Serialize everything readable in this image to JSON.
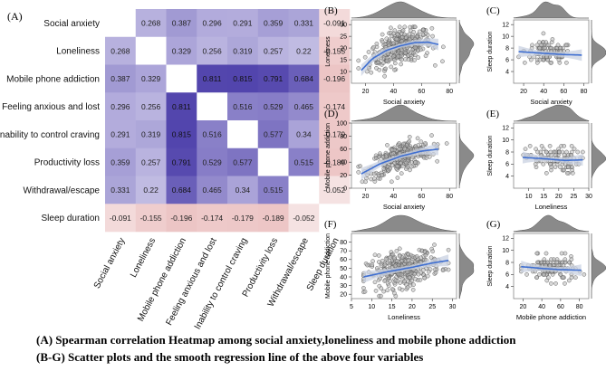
{
  "chart_data": [
    {
      "type": "heatmap",
      "panel_label": "(A)",
      "variables": [
        "Social anxiety",
        "Loneliness",
        "Mobile phone addiction",
        "Feeling anxious and lost",
        "Inability to control craving",
        "Productivity loss",
        "Withdrawal/escape",
        "Sleep duration"
      ],
      "values": [
        [
          null,
          0.268,
          0.387,
          0.296,
          0.291,
          0.359,
          0.331,
          -0.091
        ],
        [
          0.268,
          null,
          0.329,
          0.256,
          0.319,
          0.257,
          0.22,
          -0.155
        ],
        [
          0.387,
          0.329,
          null,
          0.811,
          0.815,
          0.791,
          0.684,
          -0.196
        ],
        [
          0.296,
          0.256,
          0.811,
          null,
          0.516,
          0.529,
          0.465,
          -0.174
        ],
        [
          0.291,
          0.319,
          0.815,
          0.516,
          null,
          0.577,
          0.34,
          -0.179
        ],
        [
          0.359,
          0.257,
          0.791,
          0.529,
          0.577,
          null,
          0.515,
          -0.189
        ],
        [
          0.331,
          0.22,
          0.684,
          0.465,
          0.34,
          0.515,
          null,
          -0.052
        ],
        [
          -0.091,
          -0.155,
          -0.196,
          -0.174,
          -0.179,
          -0.189,
          -0.052,
          null
        ]
      ],
      "row_labels": [
        "Social anxiety",
        "Loneliness",
        "Mobile phone addiction",
        "Feeling anxious and lost",
        "Inability to control craving",
        "Productivity loss",
        "Withdrawal/escape",
        "Sleep duration"
      ],
      "value_labels": [
        [
          "",
          "0.268",
          "0.387",
          "0.296",
          "0.291",
          "0.359",
          "0.331",
          "-0.091"
        ],
        [
          "0.268",
          "",
          "0.329",
          "0.256",
          "0.319",
          "0.257",
          "0.22",
          "-0.155"
        ],
        [
          "0.387",
          "0.329",
          "",
          "0.811",
          "0.815",
          "0.791",
          "0.684",
          "-0.196"
        ],
        [
          "0.296",
          "0.256",
          "0.811",
          "",
          "0.516",
          "0.529",
          "0.465",
          "-0.174"
        ],
        [
          "0.291",
          "0.319",
          "0.815",
          "0.516",
          "",
          "0.577",
          "0.34",
          "-0.179"
        ],
        [
          "0.359",
          "0.257",
          "0.791",
          "0.529",
          "0.577",
          "",
          "0.515",
          "-0.189"
        ],
        [
          "0.331",
          "0.22",
          "0.684",
          "0.465",
          "0.34",
          "0.515",
          "",
          "-0.052"
        ],
        [
          "-0.091",
          "-0.155",
          "-0.196",
          "-0.174",
          "-0.179",
          "-0.189",
          "-0.052",
          ""
        ]
      ],
      "colors": {
        "positive": "#5a4aa8",
        "negative": "#d8a0a0",
        "neutral": "#ffffff"
      }
    },
    {
      "type": "scatter",
      "panel_label": "(B)",
      "xlabel": "Social anxiety",
      "ylabel": "Loneliness",
      "xlim": [
        10,
        85
      ],
      "ylim": [
        5,
        32
      ],
      "xticks": [
        20,
        40,
        60,
        80
      ],
      "yticks": [
        10,
        15,
        20,
        25,
        30
      ],
      "fit": {
        "type": "smooth",
        "x": [
          17,
          25,
          35,
          45,
          55,
          65,
          72
        ],
        "y": [
          10.5,
          15.5,
          19,
          21,
          22.3,
          22.5,
          21.5
        ]
      },
      "sample": {
        "n": 320,
        "x_mean": 45,
        "x_sd": 11,
        "x_min": 15,
        "x_max": 78,
        "y_noise": 3.6,
        "y_min": 8,
        "y_max": 29
      }
    },
    {
      "type": "scatter",
      "panel_label": "(C)",
      "xlabel": "Social anxiety",
      "ylabel": "Sleep duration",
      "xlim": [
        10,
        85
      ],
      "ylim": [
        2,
        12.8
      ],
      "xticks": [
        20,
        40,
        60,
        80
      ],
      "yticks": [
        4,
        6,
        8,
        10,
        12
      ],
      "fit": {
        "type": "smooth",
        "x": [
          15,
          40,
          60,
          78
        ],
        "y": [
          7.4,
          7.1,
          6.9,
          6.8
        ]
      },
      "sample": {
        "n": 120,
        "x_mean": 45,
        "x_sd": 12,
        "x_min": 15,
        "x_max": 78,
        "y_noise": 1.0,
        "y_min": 3,
        "y_max": 12,
        "y_step": 0.5
      }
    },
    {
      "type": "scatter",
      "panel_label": "(D)",
      "xlabel": "Social anxiety",
      "ylabel": "Mobile phone addiction",
      "xlim": [
        10,
        85
      ],
      "ylim": [
        0,
        100
      ],
      "xticks": [
        20,
        40,
        60,
        80
      ],
      "yticks": [
        0,
        20,
        40,
        60,
        80,
        100
      ],
      "fit": {
        "type": "smooth",
        "x": [
          17,
          30,
          45,
          60,
          72
        ],
        "y": [
          22,
          37,
          49,
          57,
          60
        ]
      },
      "sample": {
        "n": 300,
        "x_mean": 45,
        "x_sd": 11,
        "x_min": 15,
        "x_max": 78,
        "y_noise": 11,
        "y_min": 10,
        "y_max": 85
      }
    },
    {
      "type": "scatter",
      "panel_label": "(E)",
      "xlabel": "Loneliness",
      "ylabel": "Sleep duration",
      "xlim": [
        5,
        30
      ],
      "ylim": [
        2,
        12.8
      ],
      "xticks": [
        10,
        15,
        20,
        25,
        30
      ],
      "yticks": [
        4,
        6,
        8,
        10,
        12
      ],
      "fit": {
        "type": "smooth",
        "x": [
          8,
          15,
          22,
          28
        ],
        "y": [
          7.1,
          6.9,
          6.6,
          6.7
        ]
      },
      "sample": {
        "n": 120,
        "x_mean": 18,
        "x_sd": 4.5,
        "x_min": 8,
        "x_max": 28,
        "y_noise": 1.1,
        "y_min": 3,
        "y_max": 12,
        "y_step": 0.5
      }
    },
    {
      "type": "scatter",
      "panel_label": "(F)",
      "xlabel": "Loneliness",
      "ylabel": "Mobile phone addiction",
      "xlim": [
        5,
        31
      ],
      "ylim": [
        15,
        90
      ],
      "xticks": [
        5,
        10,
        15,
        20,
        25,
        30
      ],
      "yticks": [
        20,
        30,
        40,
        50,
        60,
        70,
        80
      ],
      "fit": {
        "type": "smooth",
        "x": [
          8,
          14,
          20,
          25,
          29
        ],
        "y": [
          40,
          46,
          51,
          56,
          59
        ]
      },
      "sample": {
        "n": 320,
        "x_mean": 18,
        "x_sd": 4.5,
        "x_min": 8,
        "x_max": 29,
        "y_noise": 10,
        "y_min": 18,
        "y_max": 85
      }
    },
    {
      "type": "scatter",
      "panel_label": "(G)",
      "xlabel": "Mobile phone addiction",
      "ylabel": "Sleep duration",
      "xlim": [
        10,
        90
      ],
      "ylim": [
        2,
        12.8
      ],
      "xticks": [
        20,
        40,
        60,
        80
      ],
      "yticks": [
        4,
        6,
        8,
        10,
        12
      ],
      "fit": {
        "type": "smooth",
        "x": [
          18,
          40,
          60,
          82
        ],
        "y": [
          7.3,
          7.0,
          6.8,
          6.7
        ]
      },
      "sample": {
        "n": 140,
        "x_mean": 50,
        "x_sd": 13,
        "x_min": 18,
        "x_max": 85,
        "y_noise": 1.0,
        "y_min": 3,
        "y_max": 12,
        "y_step": 0.5
      }
    }
  ],
  "captions": {
    "a": "(A) Spearman correlation Heatmap among social anxiety,loneliness and mobile phone addiction",
    "b": "(B-G) Scatter plots and the smooth regression line of the above four variables"
  }
}
